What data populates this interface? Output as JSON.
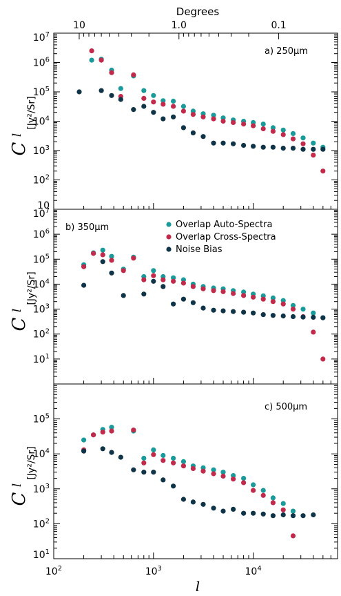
{
  "chart_data": [
    {
      "type": "scatter",
      "panel_label": "a) 250μm",
      "x_scale": "log",
      "y_scale": "log",
      "xlim": [
        100,
        70000
      ],
      "ylim": [
        10,
        10000000
      ],
      "ylabel": "C",
      "ylabel_sub": "l",
      "ylabel_unit": "[Jy²/Sr]",
      "yticks": [
        "10",
        "10²",
        "10³",
        "10⁴",
        "10⁵",
        "10⁶",
        "10⁷"
      ],
      "series": [
        {
          "name": "Overlap Auto-Spectra",
          "color": "#1a9a9a",
          "x": [
            240,
            300,
            380,
            470,
            630,
            800,
            1000,
            1250,
            1580,
            2000,
            2500,
            3150,
            4000,
            5000,
            6300,
            8000,
            10000,
            12600,
            15800,
            20000,
            25100,
            31600,
            40000,
            50000
          ],
          "y": [
            1200000,
            1300000,
            550000,
            130000,
            350000,
            110000,
            75000,
            50000,
            48000,
            32000,
            22000,
            18000,
            16000,
            13000,
            11000,
            10000,
            9000,
            8000,
            6000,
            5000,
            3800,
            2700,
            1800,
            1300
          ]
        },
        {
          "name": "Overlap Cross-Spectra",
          "color": "#c12a4a",
          "x": [
            240,
            300,
            380,
            470,
            630,
            800,
            1000,
            1250,
            1580,
            2000,
            2500,
            3150,
            4000,
            5000,
            6300,
            8000,
            10000,
            12600,
            15800,
            20000,
            25100,
            31600,
            40000,
            50000
          ],
          "y": [
            2500000,
            1200000,
            450000,
            70000,
            380000,
            60000,
            45000,
            38000,
            32000,
            22000,
            17000,
            14000,
            12000,
            10000,
            9000,
            8000,
            7000,
            5500,
            4500,
            3500,
            2500,
            1700,
            700,
            200
          ]
        },
        {
          "name": "Noise Bias",
          "color": "#0f3347",
          "x": [
            180,
            300,
            380,
            470,
            630,
            800,
            1000,
            1250,
            1580,
            2000,
            2500,
            3150,
            4000,
            5000,
            6300,
            8000,
            10000,
            12600,
            15800,
            20000,
            25100,
            31600,
            40000,
            50000
          ],
          "y": [
            100000,
            110000,
            75000,
            55000,
            25000,
            32000,
            20000,
            12000,
            14000,
            6000,
            4000,
            3000,
            1800,
            1800,
            1700,
            1500,
            1400,
            1300,
            1300,
            1200,
            1200,
            1100,
            1100,
            1100
          ]
        }
      ]
    },
    {
      "type": "scatter",
      "panel_label": "b) 350μm",
      "x_scale": "log",
      "y_scale": "log",
      "xlim": [
        100,
        70000
      ],
      "ylim": [
        1,
        10000000
      ],
      "ylabel": "C",
      "ylabel_sub": "l",
      "ylabel_unit": "[Jy²/Sr]",
      "yticks": [
        "10¹",
        "10²",
        "10³",
        "10⁴",
        "10⁵",
        "10⁶",
        "10⁷"
      ],
      "legend_position": "top-right",
      "series": [
        {
          "name": "Overlap Auto-Spectra",
          "color": "#1a9a9a",
          "x": [
            200,
            250,
            310,
            380,
            500,
            630,
            800,
            1000,
            1250,
            1580,
            2000,
            2500,
            3150,
            4000,
            5000,
            6300,
            8000,
            10000,
            12600,
            15800,
            20000,
            25100,
            31600,
            40000,
            50000
          ],
          "y": [
            60000,
            180000,
            230000,
            130000,
            40000,
            120000,
            20000,
            35000,
            20000,
            18000,
            15000,
            10000,
            8000,
            7000,
            6500,
            5500,
            4800,
            4000,
            3400,
            2800,
            2200,
            1400,
            1000,
            700,
            450
          ]
        },
        {
          "name": "Overlap Cross-Spectra",
          "color": "#c12a4a",
          "x": [
            200,
            250,
            310,
            380,
            500,
            630,
            800,
            1000,
            1250,
            1580,
            2000,
            2500,
            3150,
            4000,
            5000,
            6300,
            8000,
            10000,
            12600,
            15800,
            20000,
            25100,
            31600,
            40000,
            50000
          ],
          "y": [
            50000,
            170000,
            150000,
            90000,
            35000,
            110000,
            15000,
            22000,
            15000,
            13000,
            11000,
            8000,
            6500,
            5500,
            5000,
            4200,
            3500,
            3000,
            2500,
            2000,
            1600,
            1000,
            500,
            120,
            10
          ]
        },
        {
          "name": "Noise Bias",
          "color": "#0f3347",
          "x": [
            200,
            310,
            380,
            500,
            800,
            1000,
            1250,
            1580,
            2000,
            2500,
            3150,
            4000,
            5000,
            6300,
            8000,
            10000,
            12600,
            15800,
            20000,
            25100,
            31600,
            40000,
            50000
          ],
          "y": [
            9000,
            80000,
            28000,
            3500,
            4000,
            13000,
            8000,
            1600,
            2500,
            1800,
            1100,
            900,
            850,
            800,
            750,
            700,
            600,
            560,
            530,
            500,
            480,
            470,
            450
          ]
        }
      ]
    },
    {
      "type": "scatter",
      "panel_label": "c) 500μm",
      "x_scale": "log",
      "y_scale": "log",
      "xlim": [
        100,
        70000
      ],
      "ylim": [
        10,
        1000000
      ],
      "ylabel": "C",
      "ylabel_sub": "l",
      "ylabel_unit": "[Jy²/Sr]",
      "yticks": [
        "10¹",
        "10²",
        "10³",
        "10⁴",
        "10⁵"
      ],
      "xlabel": "l",
      "xticks": [
        "10²",
        "10³",
        "10⁴"
      ],
      "series": [
        {
          "name": "Overlap Auto-Spectra",
          "color": "#1a9a9a",
          "x": [
            200,
            250,
            310,
            380,
            630,
            800,
            1000,
            1250,
            1580,
            2000,
            2500,
            3150,
            4000,
            5000,
            6300,
            8000,
            10000,
            12600,
            15800,
            20000,
            25100
          ],
          "y": [
            25000,
            35000,
            50000,
            58000,
            45000,
            7500,
            13000,
            9000,
            7500,
            6000,
            4500,
            4000,
            3500,
            3000,
            2400,
            2000,
            1300,
            900,
            550,
            380,
            230
          ]
        },
        {
          "name": "Overlap Cross-Spectra",
          "color": "#c12a4a",
          "x": [
            200,
            250,
            310,
            380,
            630,
            800,
            1000,
            1250,
            1580,
            2000,
            2500,
            3150,
            4000,
            5000,
            6300,
            8000,
            10000,
            12600,
            15800,
            20000,
            25100
          ],
          "y": [
            13000,
            35000,
            42000,
            45000,
            48000,
            5500,
            9500,
            6500,
            5500,
            4500,
            3800,
            3200,
            2700,
            2300,
            1900,
            1500,
            900,
            650,
            400,
            250,
            45
          ]
        },
        {
          "name": "Noise Bias",
          "color": "#0f3347",
          "x": [
            200,
            310,
            380,
            470,
            630,
            800,
            1000,
            1250,
            1580,
            2000,
            2500,
            3150,
            4000,
            5000,
            6300,
            8000,
            10000,
            12600,
            15800,
            20000,
            25100,
            31600,
            40000
          ],
          "y": [
            12000,
            14000,
            11000,
            8000,
            3500,
            3000,
            3000,
            1800,
            1200,
            500,
            420,
            360,
            280,
            230,
            260,
            200,
            200,
            190,
            170,
            180,
            170,
            170,
            180
          ]
        }
      ]
    }
  ],
  "top_axis": {
    "title": "Degrees",
    "ticks": [
      {
        "label": "10",
        "l": 180
      },
      {
        "label": "1.0",
        "l": 1800
      },
      {
        "label": "0.1",
        "l": 18000
      }
    ]
  }
}
